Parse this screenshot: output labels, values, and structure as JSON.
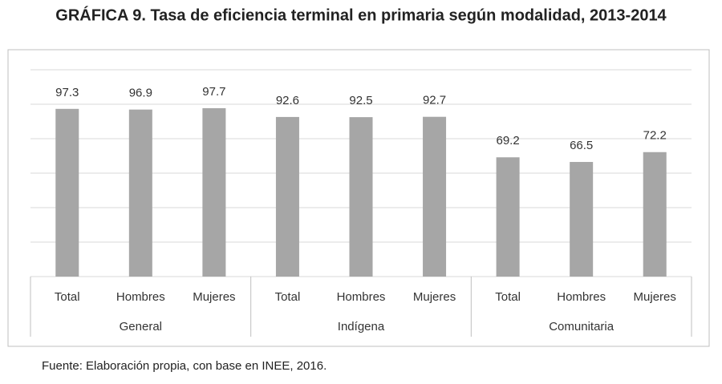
{
  "chart_data": {
    "type": "bar",
    "title": "GRÁFICA 9. Tasa de eficiencia terminal en primaria según modalidad, 2013-2014",
    "groups": [
      "General",
      "Indígena",
      "Comunitaria"
    ],
    "categories": [
      "Total",
      "Hombres",
      "Mujeres",
      "Total",
      "Hombres",
      "Mujeres",
      "Total",
      "Hombres",
      "Mujeres"
    ],
    "values": [
      97.3,
      96.9,
      97.7,
      92.6,
      92.5,
      92.7,
      69.2,
      66.5,
      72.2
    ],
    "color": "#a6a6a6",
    "ylim": [
      0,
      120
    ],
    "yticks": [
      0,
      20,
      40,
      60,
      80,
      100,
      120
    ],
    "grid": true,
    "source": "Fuente: Elaboración propia, con base en INEE, 2016."
  }
}
